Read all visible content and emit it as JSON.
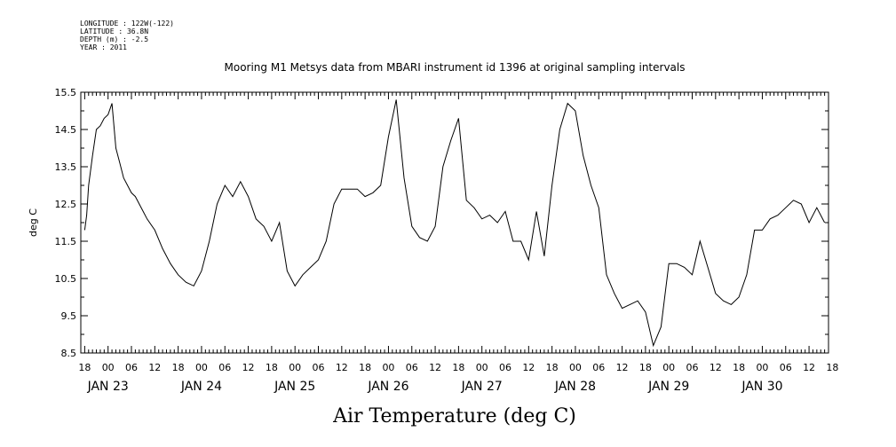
{
  "header": {
    "longitude": "LONGITUDE : 122W(-122)",
    "latitude": "LATITUDE : 36.8N",
    "depth": "DEPTH (m) : -2.5",
    "year": "YEAR : 2011"
  },
  "chart_data": {
    "type": "line",
    "title": "Mooring M1 Metsys data from MBARI instrument id 1396 at original sampling intervals",
    "xlabel": "Air Temperature (deg C)",
    "ylabel": "deg C",
    "ylim": [
      8.5,
      15.5
    ],
    "yticks": [
      "8.5",
      "9.5",
      "10.5",
      "11.5",
      "12.5",
      "13.5",
      "14.5",
      "15.5"
    ],
    "xlim_hours": [
      -7,
      185
    ],
    "x_tick_labels": [
      "18",
      "00",
      "06",
      "12",
      "18",
      "00",
      "06",
      "12",
      "18",
      "00",
      "06",
      "12",
      "18",
      "00",
      "06",
      "12",
      "18",
      "00",
      "06",
      "12",
      "18",
      "00",
      "06",
      "12",
      "18",
      "00",
      "06",
      "12",
      "18",
      "00",
      "06",
      "12",
      "18"
    ],
    "day_labels": [
      "JAN 23",
      "JAN 24",
      "JAN 25",
      "JAN 26",
      "JAN 27",
      "JAN 28",
      "JAN 29",
      "JAN 30"
    ],
    "grid": false,
    "line_color": "#000000",
    "series": [
      {
        "x": [
          -6,
          -5.5,
          -5,
          -4,
          -3,
          -2,
          -1,
          0,
          1,
          1.5,
          2,
          3,
          4,
          5,
          6,
          7,
          8,
          9,
          10,
          12,
          14,
          16,
          18,
          20,
          22,
          24,
          26,
          28,
          30,
          32,
          34,
          36,
          38,
          40,
          42,
          44,
          46,
          48,
          50,
          52,
          54,
          56,
          58,
          60,
          62,
          64,
          66,
          68,
          70,
          72,
          74,
          76,
          78,
          80,
          82,
          84,
          86,
          88,
          90,
          92,
          94,
          96,
          98,
          100,
          102,
          104,
          106,
          108,
          110,
          112,
          114,
          116,
          118,
          120,
          122,
          124,
          126,
          128,
          130,
          132,
          134,
          136,
          138,
          140,
          142,
          144,
          146,
          148,
          150,
          152,
          154,
          156,
          158,
          160,
          162,
          164,
          166,
          168,
          170,
          172,
          174,
          176,
          178,
          180,
          182,
          184
        ],
        "y": [
          11.8,
          12.2,
          13.0,
          13.8,
          14.5,
          14.6,
          14.8,
          14.9,
          15.2,
          14.6,
          14.0,
          13.6,
          13.2,
          13.0,
          12.8,
          12.7,
          12.5,
          12.3,
          12.1,
          11.8,
          11.3,
          10.9,
          10.6,
          10.4,
          10.3,
          10.7,
          11.5,
          12.5,
          13.0,
          12.7,
          13.1,
          12.7,
          12.1,
          11.9,
          11.5,
          12.0,
          10.7,
          10.3,
          10.6,
          10.8,
          11.0,
          11.5,
          12.5,
          12.9,
          12.9,
          12.9,
          12.7,
          12.8,
          13.0,
          14.3,
          15.3,
          13.2,
          11.9,
          11.6,
          11.5,
          11.9,
          13.5,
          14.2,
          14.8,
          12.6,
          12.4,
          12.1,
          12.2,
          12.0,
          12.3,
          11.5,
          11.5,
          11.0,
          12.3,
          11.1,
          13.0,
          14.5,
          15.2,
          15.0,
          13.8,
          13.0,
          12.4,
          10.6,
          10.1,
          9.7,
          9.8,
          9.9,
          9.6,
          8.7,
          9.2,
          10.9,
          10.9,
          10.8,
          10.6,
          11.5,
          10.8,
          10.1,
          9.9,
          9.8,
          10.0,
          10.6,
          11.8,
          11.8,
          12.1,
          12.2,
          12.4,
          12.6,
          12.5,
          12.0,
          12.4,
          12.0
        ]
      }
    ]
  }
}
